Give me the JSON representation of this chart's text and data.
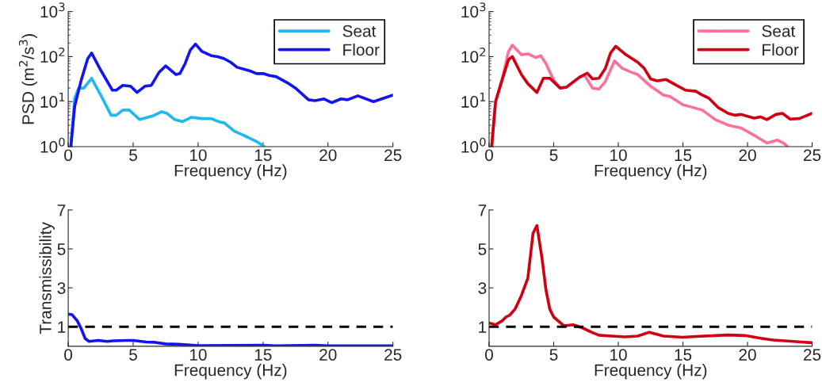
{
  "chart_data": [
    {
      "type": "line",
      "xlabel": "Frequency (Hz)",
      "ylabel": "PSD (m$^{2}$/s$^{3}$)",
      "log": "y",
      "xlim": [
        0,
        25
      ],
      "xticks": [
        0,
        5,
        10,
        15,
        20,
        25
      ],
      "ylim": [
        1,
        1000
      ],
      "yticks": [
        {
          "value": 1,
          "label": "10$^{0}$"
        },
        {
          "value": 10,
          "label": "10$^{1}$"
        },
        {
          "value": 100,
          "label": "10$^{2}$"
        },
        {
          "value": 1000,
          "label": "10$^{3}$"
        }
      ],
      "legend": "top right",
      "grid": false,
      "series": [
        {
          "name": "Seat",
          "color": "#1fb8f0",
          "x": [
            0.2,
            0.5,
            0.8,
            1.2,
            1.8,
            2.5,
            3.3,
            3.7,
            4.2,
            4.7,
            5.5,
            6.5,
            7.2,
            7.6,
            8.2,
            8.8,
            9.5,
            10.3,
            11,
            11.7,
            12,
            12.8,
            13.5,
            14.5,
            15.1
          ],
          "values": [
            1,
            12,
            20,
            20,
            33,
            14,
            5,
            5,
            6.5,
            6.5,
            4,
            4.8,
            6,
            5.5,
            4,
            3.6,
            4.5,
            4.2,
            4.2,
            3.5,
            3.4,
            2.2,
            1.8,
            1.3,
            1.0
          ]
        },
        {
          "name": "Floor",
          "color": "#1414f0",
          "x": [
            0.2,
            0.5,
            1,
            1.5,
            1.8,
            2.5,
            3.4,
            3.7,
            4.2,
            4.8,
            5.3,
            5.9,
            6.4,
            7,
            7.5,
            8.3,
            8.6,
            9,
            9.4,
            9.8,
            10.3,
            11,
            11.5,
            12,
            12.5,
            13,
            14,
            14.5,
            15,
            15.5,
            16,
            17,
            17.5,
            18.5,
            19,
            19.7,
            20.3,
            21,
            21.5,
            22.3,
            23.5,
            25
          ],
          "values": [
            1,
            8,
            30,
            90,
            120,
            50,
            18,
            18,
            23,
            22,
            16,
            22,
            23,
            45,
            62,
            40,
            42,
            70,
            140,
            190,
            130,
            105,
            100,
            90,
            75,
            58,
            48,
            42,
            42,
            38,
            36,
            25,
            20,
            11,
            10.5,
            11.5,
            9.5,
            11.5,
            11,
            13.5,
            10,
            14
          ]
        }
      ]
    },
    {
      "type": "line",
      "xlabel": "Frequency (Hz)",
      "log": "y",
      "xlim": [
        0,
        25
      ],
      "xticks": [
        0,
        5,
        10,
        15,
        20,
        25
      ],
      "ylim": [
        1,
        1000
      ],
      "yticks": [
        {
          "value": 1,
          "label": "10$^{0}$"
        },
        {
          "value": 10,
          "label": "10$^{1}$"
        },
        {
          "value": 100,
          "label": "10$^{2}$"
        },
        {
          "value": 1000,
          "label": "10$^{3}$"
        }
      ],
      "legend": "top right",
      "grid": false,
      "series": [
        {
          "name": "Seat",
          "color": "#ff6fa0",
          "x": [
            0.2,
            0.5,
            1,
            1.5,
            1.8,
            2.5,
            3,
            3.6,
            4,
            4.4,
            5,
            5.5,
            6,
            7,
            7.4,
            8,
            8.5,
            9,
            9.7,
            10.3,
            11,
            11.5,
            12.5,
            13.5,
            14,
            15,
            15.5,
            16.5,
            17.5,
            18.5,
            19.5,
            20.5,
            21.5,
            22.3,
            22.8,
            23.1
          ],
          "values": [
            1,
            10,
            30,
            130,
            180,
            110,
            115,
            95,
            105,
            70,
            30,
            20,
            21,
            35,
            38,
            20,
            19,
            28,
            80,
            55,
            45,
            40,
            22,
            14,
            13,
            8.5,
            7.8,
            6.5,
            4,
            3,
            2.6,
            1.8,
            1.2,
            1.4,
            1.2,
            1.0
          ]
        },
        {
          "name": "Floor",
          "color": "#d00010",
          "x": [
            0.2,
            0.5,
            1,
            1.5,
            1.8,
            2.5,
            3,
            3.7,
            4.2,
            4.7,
            5.5,
            6,
            7,
            7.6,
            8,
            8.5,
            9,
            9.4,
            9.8,
            10.5,
            11.5,
            12,
            12.5,
            13,
            13.7,
            14.5,
            15.2,
            16,
            16.5,
            17,
            17.7,
            18.5,
            19,
            19.5,
            20.5,
            21,
            21.5,
            22.2,
            22.7,
            23.3,
            24,
            25
          ],
          "values": [
            1,
            10,
            30,
            85,
            100,
            40,
            25,
            16,
            33,
            33,
            20,
            21,
            35,
            43,
            32,
            33,
            55,
            120,
            170,
            115,
            75,
            55,
            32,
            29,
            31,
            23,
            18,
            17,
            14,
            12,
            7.5,
            5.5,
            5,
            5.2,
            4.3,
            4.6,
            4,
            5.2,
            5.5,
            4.1,
            4.2,
            5.5
          ]
        }
      ]
    },
    {
      "type": "line",
      "xlabel": "Frequency (Hz)",
      "ylabel": "Transmissibility",
      "xlim": [
        0,
        25
      ],
      "xticks": [
        0,
        5,
        10,
        15,
        20,
        25
      ],
      "ylim": [
        0,
        7
      ],
      "yticks": [
        1,
        3,
        5,
        7
      ],
      "grid": false,
      "ref_lines": [
        {
          "axis": "y",
          "value": 1,
          "color": "#000000",
          "line_style": "dashed"
        }
      ],
      "series": [
        {
          "color": "#1414f0",
          "x": [
            0,
            0.3,
            0.7,
            1,
            1.3,
            1.6,
            2.3,
            3,
            3.5,
            4.5,
            5,
            6,
            6.7,
            7.5,
            8.5,
            10,
            15,
            16,
            19,
            20,
            25
          ],
          "values": [
            1.65,
            1.62,
            1.3,
            0.9,
            0.4,
            0.25,
            0.3,
            0.25,
            0.28,
            0.3,
            0.3,
            0.22,
            0.2,
            0.12,
            0.1,
            0.03,
            0.05,
            0.02,
            0.05,
            0.02,
            0.02
          ]
        }
      ]
    },
    {
      "type": "line",
      "xlabel": "Frequency (Hz)",
      "xlim": [
        0,
        25
      ],
      "xticks": [
        0,
        5,
        10,
        15,
        20,
        25
      ],
      "ylim": [
        0,
        7
      ],
      "yticks": [
        1,
        3,
        5,
        7
      ],
      "grid": false,
      "ref_lines": [
        {
          "axis": "y",
          "value": 1,
          "color": "#000000",
          "line_style": "dashed"
        }
      ],
      "series": [
        {
          "color": "#d00010",
          "x": [
            0,
            0.5,
            1,
            1.3,
            1.6,
            2,
            2.5,
            3,
            3.4,
            3.7,
            4.1,
            4.4,
            4.7,
            5,
            5.8,
            6.5,
            7.2,
            8,
            8.5,
            9.5,
            10.5,
            11.5,
            12.4,
            13.5,
            15,
            16,
            18.5,
            19.8,
            21,
            22,
            25
          ],
          "values": [
            1.2,
            1.1,
            1.3,
            1.5,
            1.6,
            1.9,
            2.6,
            3.5,
            5.8,
            6.2,
            4.5,
            2.9,
            1.9,
            1.5,
            1.05,
            1.1,
            0.95,
            0.7,
            0.57,
            0.52,
            0.48,
            0.52,
            0.72,
            0.52,
            0.46,
            0.5,
            0.58,
            0.55,
            0.41,
            0.32,
            0.18
          ]
        }
      ]
    }
  ]
}
